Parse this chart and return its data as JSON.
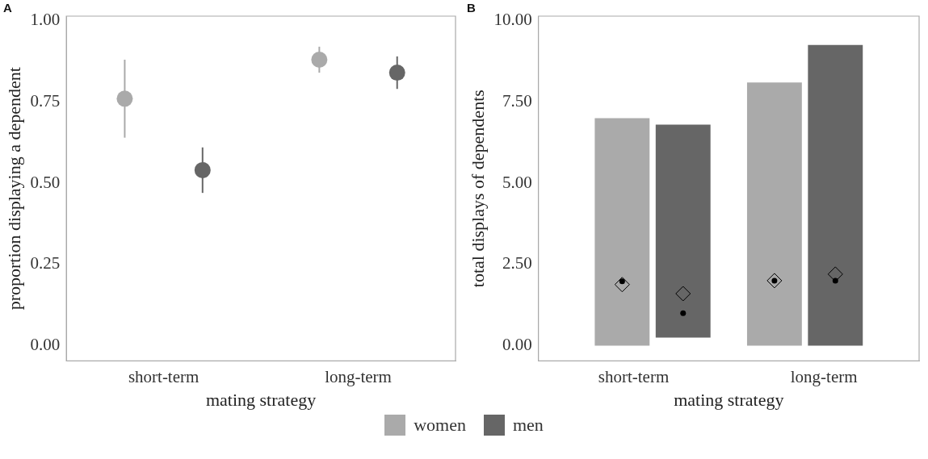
{
  "chart_data": [
    {
      "type": "scatter",
      "title": "A",
      "categories": [
        "short-term",
        "long-term"
      ],
      "xlabel": "mating strategy",
      "ylabel": "proportion displaying a dependent",
      "ylim": [
        -0.047,
        1.014
      ],
      "yticks": [
        {
          "value": 0,
          "label": "0.00"
        },
        {
          "value": 0.25,
          "label": "0.25"
        },
        {
          "value": 0.5,
          "label": "0.50"
        },
        {
          "value": 0.75,
          "label": "0.75"
        },
        {
          "value": 1,
          "label": "1.00"
        }
      ],
      "grid": false,
      "legend": "bottom",
      "marker": "circle",
      "series": [
        {
          "name": "women",
          "color": "#aaaaaa",
          "values": [
            0.76,
            0.88
          ],
          "errors": [
            [
              0.64,
              0.88
            ],
            [
              0.84,
              0.92
            ]
          ]
        },
        {
          "name": "men",
          "color": "#666666",
          "values": [
            0.54,
            0.84
          ],
          "errors": [
            [
              0.47,
              0.61
            ],
            [
              0.79,
              0.89
            ]
          ]
        }
      ]
    },
    {
      "type": "bar",
      "title": "B",
      "categories": [
        "short-term",
        "long-term"
      ],
      "xlabel": "mating strategy",
      "ylabel": "total displays of dependents",
      "ylim": [
        -0.47,
        10.14
      ],
      "yticks": [
        {
          "value": 0,
          "label": "0.00"
        },
        {
          "value": 2.5,
          "label": "2.50"
        },
        {
          "value": 5,
          "label": "5.00"
        },
        {
          "value": 7.5,
          "label": "7.50"
        },
        {
          "value": 10,
          "label": "10.00"
        }
      ],
      "grid": false,
      "series": [
        {
          "color": "#aaaaaa",
          "base": [
            0,
            0
          ],
          "values": [
            7.0,
            8.1
          ]
        },
        {
          "color": "#666666",
          "base": [
            0.25,
            0
          ],
          "values": [
            6.55,
            9.25
          ]
        },
        {
          "type": "scatter",
          "marker": "diamond",
          "color": "#000000",
          "x": [
            "short-term",
            "long-term"
          ],
          "values": [
            1.88,
            2.0
          ]
        },
        {
          "type": "scatter",
          "marker": "diamond",
          "color": "#000000",
          "x": [
            "short-term",
            "long-term"
          ],
          "values": [
            1.6,
            2.2
          ]
        },
        {
          "type": "scatter",
          "marker": "circle",
          "color": "#000000",
          "x": [
            "short-term",
            "long-term"
          ],
          "values": [
            1.98,
            2.0
          ]
        },
        {
          "type": "scatter",
          "marker": "circle",
          "color": "#000000",
          "x": [
            "short-term",
            "long-term"
          ],
          "values": [
            1.0,
            2.0
          ]
        }
      ]
    }
  ]
}
